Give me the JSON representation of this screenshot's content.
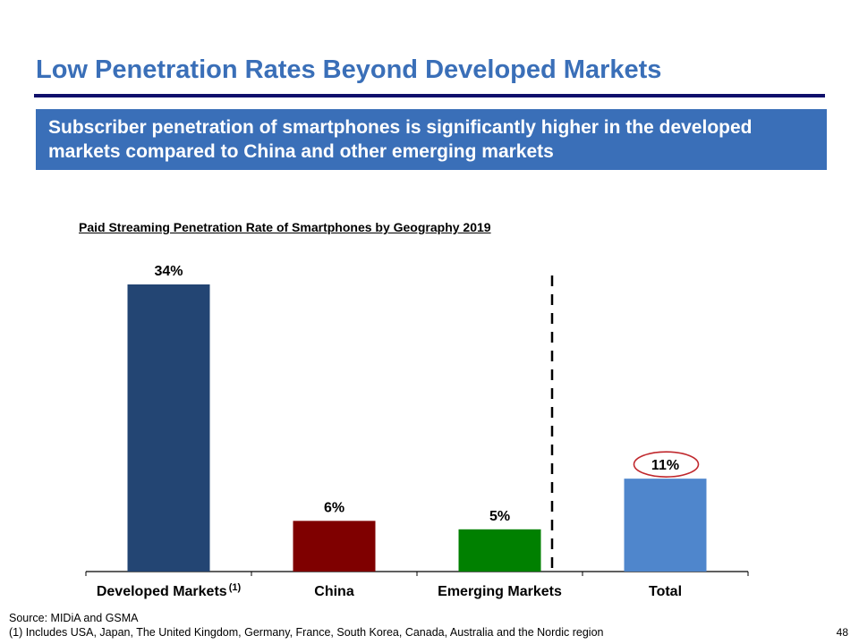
{
  "slide": {
    "title": "Low Penetration Rates Beyond Developed Markets",
    "callout": "Subscriber penetration of smartphones is significantly higher in the developed markets compared to China and other emerging markets",
    "source": "Source: MIDiA and GSMA",
    "footnote": "(1) Includes USA, Japan, The United Kingdom, Germany, France, South Korea, Canada, Australia and the Nordic region",
    "page_number": "48"
  },
  "chart_data": {
    "type": "bar",
    "title": "Paid Streaming Penetration Rate of Smartphones by Geography 2019",
    "categories": [
      "Developed Markets",
      "China",
      "Emerging Markets",
      "Total"
    ],
    "category_superscripts": [
      "(1)",
      "",
      "",
      ""
    ],
    "values": [
      34,
      6,
      5,
      11
    ],
    "value_labels": [
      "34%",
      "6%",
      "5%",
      "11%"
    ],
    "colors": [
      "#234573",
      "#7f0000",
      "#008000",
      "#4f86cc"
    ],
    "unit": "%",
    "ylim": [
      0,
      34
    ],
    "xlabel": "",
    "ylabel": "",
    "grid": false,
    "highlight_category": "Total",
    "highlight_color": "#c0282d",
    "divider_before": "Total"
  }
}
